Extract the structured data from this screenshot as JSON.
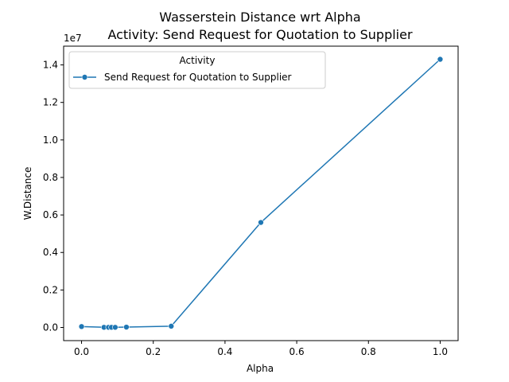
{
  "chart_data": {
    "type": "line",
    "title_line1": "Wasserstein Distance wrt Alpha",
    "title_line2": "Activity: Send Request for Quotation to Supplier",
    "xlabel": "Alpha",
    "ylabel": "W.Distance",
    "y_offset_label": "1e7",
    "xlim": [
      -0.05,
      1.05
    ],
    "ylim": [
      -700000,
      15000000
    ],
    "x_ticks": [
      0.0,
      0.2,
      0.4,
      0.6,
      0.8,
      1.0
    ],
    "x_tick_labels": [
      "0.0",
      "0.2",
      "0.4",
      "0.6",
      "0.8",
      "1.0"
    ],
    "y_ticks": [
      0,
      2000000,
      4000000,
      6000000,
      8000000,
      10000000,
      12000000,
      14000000
    ],
    "y_tick_labels": [
      "0.0",
      "0.2",
      "0.4",
      "0.6",
      "0.8",
      "1.0",
      "1.2",
      "1.4"
    ],
    "legend": {
      "title": "Activity",
      "position": "top-left"
    },
    "grid": false,
    "series": [
      {
        "name": "Send Request for Quotation to Supplier",
        "color": "#1f77b4",
        "marker": "circle",
        "x": [
          0.0,
          0.0625,
          0.075,
          0.0833,
          0.0938,
          0.125,
          0.25,
          0.5,
          1.0
        ],
        "y": [
          50000,
          10000,
          10000,
          10000,
          10000,
          20000,
          70000,
          5600000,
          14300000
        ]
      }
    ]
  }
}
